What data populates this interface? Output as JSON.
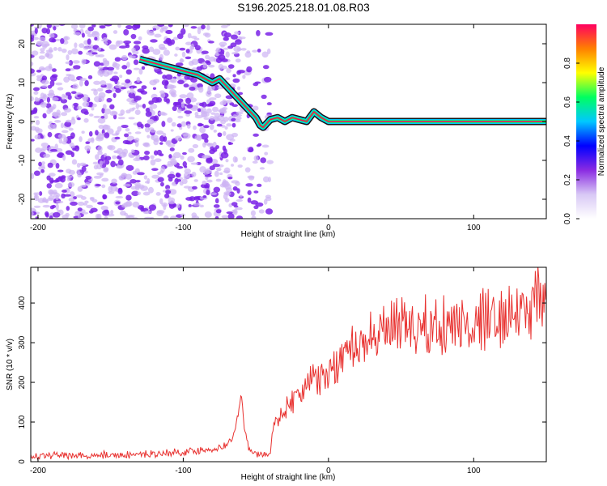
{
  "title": "S196.2025.218.01.08.R03",
  "colors": {
    "snr_line": "#e8312f",
    "frame": "#000000",
    "scatter_main": "#8a2be2"
  },
  "chart_data": [
    {
      "type": "heatmap",
      "xlabel": "Height of straight line (km)",
      "ylabel": "Frequency (Hz)",
      "xlim": [
        -205,
        150
      ],
      "ylim": [
        -25,
        25
      ],
      "x_ticks": [
        -200,
        -100,
        0,
        100
      ],
      "y_ticks": [
        -20,
        -10,
        0,
        10,
        20
      ],
      "colorbar": {
        "label": "Normalized spectral amplitude",
        "range": [
          0,
          1
        ],
        "ticks": [
          "0.0",
          "0.2",
          "0.4",
          "0.6",
          "0.8"
        ],
        "colormap": [
          "#ffffff",
          "#d8c8f5",
          "#8a2be2",
          "#0000ff",
          "#00c8ff",
          "#00ff60",
          "#ffff00",
          "#ff8000",
          "#ff0060"
        ]
      },
      "ridge": {
        "description_points_x": [
          -130,
          -120,
          -110,
          -100,
          -90,
          -80,
          -75,
          -70,
          -65,
          -60,
          -55,
          -50,
          -47,
          -45,
          -40,
          -35,
          -30,
          -25,
          -20,
          -15,
          -10,
          -5,
          0,
          10,
          20,
          150
        ],
        "description_points_y": [
          16,
          15,
          14,
          13,
          12,
          10,
          11,
          9,
          7,
          5,
          3,
          1,
          -1,
          -1.5,
          0.5,
          1,
          0,
          1,
          0.5,
          0,
          2.5,
          1,
          0,
          0,
          0,
          0
        ]
      }
    },
    {
      "type": "line",
      "xlabel": "Height of straight line (km)",
      "ylabel": "SNR (10 * v/v)",
      "xlim": [
        -205,
        150
      ],
      "ylim": [
        0,
        490
      ],
      "x_ticks": [
        -200,
        -100,
        0,
        100
      ],
      "y_ticks": [
        0,
        100,
        200,
        300,
        400
      ],
      "series": [
        {
          "x": [
            -205,
            -190,
            -175,
            -160,
            -145,
            -130,
            -120,
            -110,
            -100,
            -90,
            -80,
            -75,
            -70,
            -66,
            -62,
            -60,
            -58,
            -55,
            -50,
            -45,
            -40,
            -38,
            -35,
            -30,
            -25,
            -20,
            -15,
            -10,
            -5,
            0,
            5,
            10,
            15,
            20,
            25,
            30,
            35,
            40,
            50,
            60,
            70,
            80,
            90,
            100,
            110,
            120,
            130,
            140,
            150
          ],
          "y": [
            15,
            16,
            15,
            17,
            16,
            18,
            20,
            22,
            25,
            28,
            32,
            35,
            40,
            60,
            120,
            180,
            90,
            30,
            20,
            18,
            22,
            90,
            110,
            130,
            150,
            170,
            190,
            200,
            215,
            225,
            245,
            265,
            280,
            295,
            310,
            320,
            325,
            330,
            332,
            335,
            338,
            340,
            345,
            350,
            355,
            360,
            370,
            390,
            420
          ]
        }
      ]
    }
  ]
}
